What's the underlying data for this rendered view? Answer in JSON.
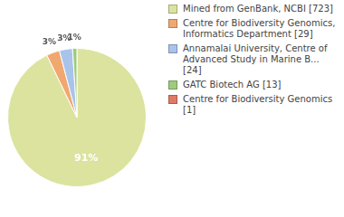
{
  "chart_data": {
    "type": "pie",
    "categories": [
      "Mined from GenBank, NCBI [723]",
      "Centre for Biodiversity Genomics, Informatics Department [29]",
      "Annamalai University, Centre of Advanced Study in Marine B... [24]",
      "GATC Biotech AG [13]",
      "Centre for Biodiversity Genomics [1]"
    ],
    "values": [
      91,
      3,
      3,
      1,
      0
    ],
    "value_labels": [
      "91%",
      "3%",
      "3%",
      "1%",
      null
    ],
    "colors": [
      "#dce39f",
      "#f0a870",
      "#a9c4ea",
      "#9fcb7c",
      "#e07a66"
    ],
    "data_labels": true,
    "legend": "right"
  }
}
